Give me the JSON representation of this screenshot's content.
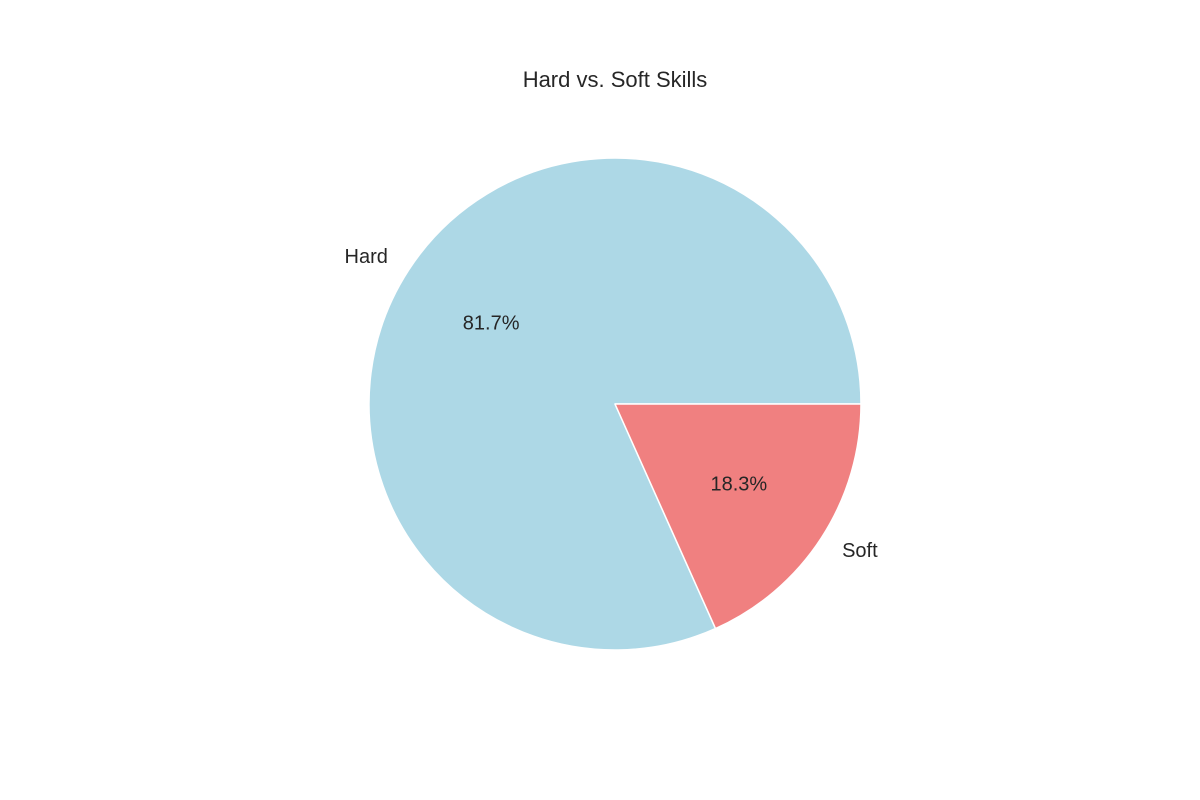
{
  "chart_data": {
    "type": "pie",
    "title": "Hard vs. Soft Skills",
    "start_angle_deg": 0,
    "direction": "counterclockwise",
    "slices": [
      {
        "label": "Hard",
        "value": 81.7,
        "pct_text": "81.7%",
        "color": "#add8e6"
      },
      {
        "label": "Soft",
        "value": 18.3,
        "pct_text": "18.3%",
        "color": "#f08080"
      }
    ],
    "slice_edge_color": "#ffffff"
  }
}
